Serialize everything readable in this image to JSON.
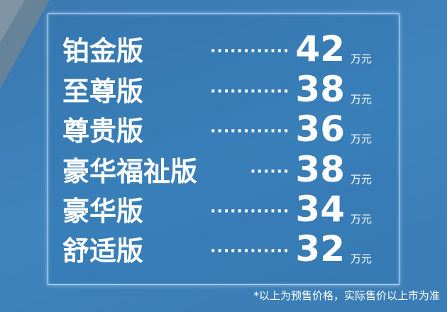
{
  "items": [
    {
      "name": "铂金版",
      "dots": "············",
      "price": "42",
      "unit": "万元"
    },
    {
      "name": "至尊版",
      "dots": "············",
      "price": "38",
      "unit": "万元"
    },
    {
      "name": "尊贵版",
      "dots": "············",
      "price": "36",
      "unit": "万元"
    },
    {
      "name": "豪华福祉版",
      "dots": "······",
      "price": "38",
      "unit": "万元"
    },
    {
      "name": "豪华版",
      "dots": "············",
      "price": "34",
      "unit": "万元"
    },
    {
      "name": "舒适版",
      "dots": "············",
      "price": "32",
      "unit": "万元"
    }
  ],
  "footnote": "*以上为预售价格，实际售价以上市为准",
  "colors": {
    "background": "#3d80ba",
    "text": "#ffffff"
  }
}
